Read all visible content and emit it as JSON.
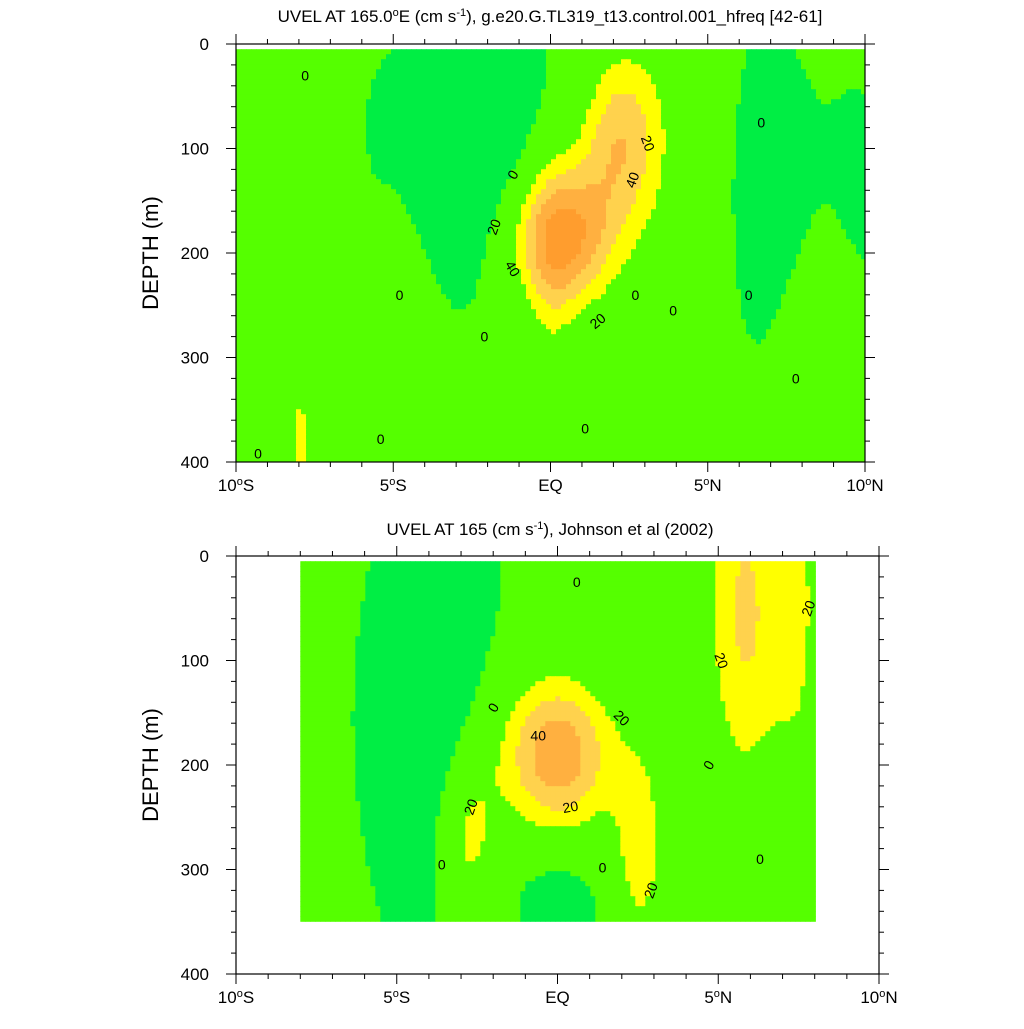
{
  "chart_data": [
    {
      "type": "contour",
      "title_parts": [
        "UVEL AT 165.0",
        "o",
        "E (cm s",
        "-1",
        "), g.e20.G.TL319_t13.control.001_hfreq [42-61]"
      ],
      "ylabel": "DEPTH (m)",
      "x_ticks": [
        {
          "value": -10,
          "label": "10",
          "sup": "o",
          "suffix": "S"
        },
        {
          "value": -5,
          "label": "5",
          "sup": "o",
          "suffix": "S"
        },
        {
          "value": 0,
          "label": "EQ",
          "sup": "",
          "suffix": ""
        },
        {
          "value": 5,
          "label": "5",
          "sup": "o",
          "suffix": "N"
        },
        {
          "value": 10,
          "label": "10",
          "sup": "o",
          "suffix": "N"
        }
      ],
      "y_ticks": [
        0,
        100,
        200,
        300,
        400
      ],
      "xlim": [
        -10,
        10
      ],
      "ylim": [
        0,
        400
      ],
      "y_inverted": true,
      "data_extent": {
        "x": [
          -10,
          10
        ],
        "y": [
          5,
          400
        ]
      },
      "levels": [
        -20,
        0,
        20,
        30,
        40,
        50
      ],
      "fill_colors": [
        "#00FFEE",
        "#00EEAA",
        "#00EE44",
        "#55FF00",
        "#FFFF00",
        "#FFD24D",
        "#FFB040",
        "#FF9D2E"
      ],
      "background_color": "#1CE9D2",
      "features": [
        {
          "type": "core",
          "x": 0.4,
          "y": 185,
          "value": 52,
          "sx": 1.15,
          "sy": 50
        },
        {
          "type": "ridge",
          "x": 2.2,
          "y": 90,
          "value": 34,
          "sx": 0.9,
          "sy": 60
        },
        {
          "type": "band",
          "x": -7.8,
          "y": 200,
          "value": 10,
          "sx": 1.1,
          "sy": 9999
        },
        {
          "type": "band",
          "x": 3.8,
          "y": 250,
          "value": 9,
          "sx": 1.0,
          "sy": 180
        },
        {
          "type": "band",
          "x": 8.4,
          "y": 330,
          "value": 8,
          "sx": 0.9,
          "sy": 90
        },
        {
          "type": "band",
          "x": -4.7,
          "y": 340,
          "value": 9,
          "sx": 0.7,
          "sy": 100
        },
        {
          "type": "band",
          "x": 0.0,
          "y": 330,
          "value": 10,
          "sx": 0.5,
          "sy": 60
        },
        {
          "type": "band",
          "x": -8.2,
          "y": 380,
          "value": 9,
          "sx": 1.3,
          "sy": 50
        },
        {
          "type": "hole",
          "x": -3.0,
          "y": 90,
          "value": -18,
          "sx": 1.8,
          "sy": 80
        },
        {
          "type": "hole",
          "x": 8.0,
          "y": 150,
          "value": -8,
          "sx": 1.5,
          "sy": 120
        }
      ],
      "contour_labels": [
        {
          "text": "0",
          "x": -7.8,
          "y": 30,
          "angle": 0
        },
        {
          "text": "0",
          "x": -1.2,
          "y": 125,
          "angle": -60
        },
        {
          "text": "0",
          "x": 6.7,
          "y": 75,
          "angle": 0
        },
        {
          "text": "0",
          "x": -4.8,
          "y": 240,
          "angle": 0
        },
        {
          "text": "0",
          "x": -2.1,
          "y": 280,
          "angle": 0
        },
        {
          "text": "0",
          "x": 2.7,
          "y": 240,
          "angle": 0
        },
        {
          "text": "0",
          "x": 3.9,
          "y": 255,
          "angle": 0
        },
        {
          "text": "0",
          "x": 6.3,
          "y": 240,
          "angle": 0
        },
        {
          "text": "0",
          "x": 7.8,
          "y": 320,
          "angle": 0
        },
        {
          "text": "0",
          "x": -5.4,
          "y": 378,
          "angle": 0
        },
        {
          "text": "0",
          "x": 1.1,
          "y": 368,
          "angle": 0
        },
        {
          "text": "0",
          "x": -9.3,
          "y": 392,
          "angle": 0
        },
        {
          "text": "20",
          "x": -1.8,
          "y": 175,
          "angle": -70
        },
        {
          "text": "20",
          "x": 3.1,
          "y": 95,
          "angle": 70
        },
        {
          "text": "20",
          "x": 1.5,
          "y": 265,
          "angle": -40
        },
        {
          "text": "40",
          "x": 2.6,
          "y": 130,
          "angle": -70
        },
        {
          "text": "40",
          "x": -1.2,
          "y": 215,
          "angle": 60
        }
      ]
    },
    {
      "type": "contour",
      "title_parts": [
        "UVEL AT 165 (cm s",
        "-1",
        "), Johnson et al (2002)"
      ],
      "ylabel": "DEPTH (m)",
      "x_ticks": [
        {
          "value": -10,
          "label": "10",
          "sup": "o",
          "suffix": "S"
        },
        {
          "value": -5,
          "label": "5",
          "sup": "o",
          "suffix": "S"
        },
        {
          "value": 0,
          "label": "EQ",
          "sup": "",
          "suffix": ""
        },
        {
          "value": 5,
          "label": "5",
          "sup": "o",
          "suffix": "N"
        },
        {
          "value": 10,
          "label": "10",
          "sup": "o",
          "suffix": "N"
        }
      ],
      "y_ticks": [
        0,
        100,
        200,
        300,
        400
      ],
      "xlim": [
        -10,
        10
      ],
      "ylim": [
        0,
        400
      ],
      "y_inverted": true,
      "data_extent": {
        "x": [
          -8,
          8
        ],
        "y": [
          5,
          345
        ]
      },
      "levels": [
        -20,
        0,
        20,
        30,
        40,
        50
      ],
      "fill_colors": [
        "#00FFEE",
        "#00EEAA",
        "#00EE44",
        "#55FF00",
        "#FFFF00",
        "#FFD24D",
        "#FFB040",
        "#FF9D2E"
      ],
      "background_color": "#1CE9D2",
      "features": [
        {
          "type": "core",
          "x": 0.0,
          "y": 190,
          "value": 46,
          "sx": 1.3,
          "sy": 55
        },
        {
          "type": "arm",
          "x": -2.8,
          "y": 270,
          "value": 24,
          "sx": 0.7,
          "sy": 60
        },
        {
          "type": "arm",
          "x": 2.6,
          "y": 280,
          "value": 26,
          "sx": 0.6,
          "sy": 70
        },
        {
          "type": "band",
          "x": 5.8,
          "y": 60,
          "value": 30,
          "sx": 0.9,
          "sy": 60
        },
        {
          "type": "band",
          "x": 7.5,
          "y": 50,
          "value": 18,
          "sx": 0.6,
          "sy": 60
        },
        {
          "type": "band",
          "x": -6.5,
          "y": 100,
          "value": 6,
          "sx": 1.0,
          "sy": 140
        },
        {
          "type": "hole",
          "x": -4.5,
          "y": 150,
          "value": -18,
          "sx": 1.4,
          "sy": 130
        },
        {
          "type": "hole",
          "x": 5.5,
          "y": 270,
          "value": -6,
          "sx": 1.6,
          "sy": 80
        },
        {
          "type": "hole",
          "x": 0.0,
          "y": 320,
          "value": -8,
          "sx": 0.9,
          "sy": 35
        }
      ],
      "contour_labels": [
        {
          "text": "0",
          "x": 0.6,
          "y": 25,
          "angle": 0
        },
        {
          "text": "0",
          "x": -2.0,
          "y": 145,
          "angle": -60
        },
        {
          "text": "0",
          "x": 4.7,
          "y": 200,
          "angle": -60
        },
        {
          "text": "0",
          "x": -3.6,
          "y": 295,
          "angle": 0
        },
        {
          "text": "0",
          "x": 1.4,
          "y": 298,
          "angle": 0
        },
        {
          "text": "0",
          "x": 6.3,
          "y": 290,
          "angle": 0
        },
        {
          "text": "20",
          "x": 7.8,
          "y": 50,
          "angle": -70
        },
        {
          "text": "20",
          "x": 5.1,
          "y": 100,
          "angle": 70
        },
        {
          "text": "20",
          "x": 2.0,
          "y": 155,
          "angle": 45
        },
        {
          "text": "20",
          "x": -2.7,
          "y": 240,
          "angle": -70
        },
        {
          "text": "20",
          "x": 0.4,
          "y": 240,
          "angle": -10
        },
        {
          "text": "20",
          "x": 2.9,
          "y": 320,
          "angle": -70
        },
        {
          "text": "40",
          "x": -0.6,
          "y": 172,
          "angle": 0
        }
      ]
    }
  ]
}
